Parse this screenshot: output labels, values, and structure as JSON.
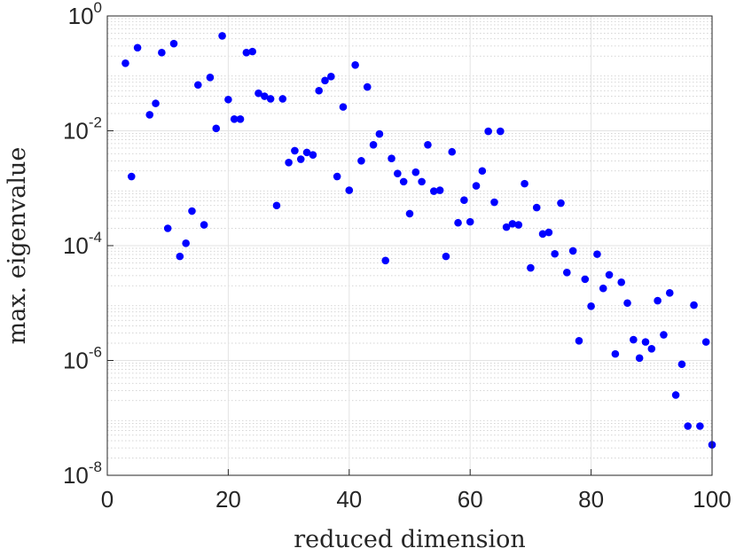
{
  "chart_data": {
    "type": "scatter",
    "xlabel": "reduced dimension",
    "ylabel": "max. eigenvalue",
    "xlim": [
      0,
      100
    ],
    "ylim": [
      1e-08,
      1
    ],
    "yscale": "log",
    "grid": true,
    "x_ticks": [
      {
        "value": 0,
        "label": "0"
      },
      {
        "value": 20,
        "label": "20"
      },
      {
        "value": 40,
        "label": "40"
      },
      {
        "value": 60,
        "label": "60"
      },
      {
        "value": 80,
        "label": "80"
      },
      {
        "value": 100,
        "label": "100"
      }
    ],
    "y_ticks": [
      {
        "value": 1,
        "base": "10",
        "exp": "0"
      },
      {
        "value": 0.01,
        "base": "10",
        "exp": "-2"
      },
      {
        "value": 0.0001,
        "base": "10",
        "exp": "-4"
      },
      {
        "value": 1e-06,
        "base": "10",
        "exp": "-6"
      },
      {
        "value": 1e-08,
        "base": "10",
        "exp": "-8"
      }
    ],
    "marker_color": "#0000ff",
    "series": [
      {
        "x": [
          3,
          4,
          5,
          7,
          8,
          9,
          10,
          11,
          12,
          13,
          14,
          15,
          16,
          17,
          18,
          19,
          20,
          21,
          22,
          23,
          24,
          25,
          26,
          27,
          28,
          29,
          30,
          31,
          32,
          33,
          34,
          35,
          36,
          37,
          38,
          39,
          40,
          41,
          42,
          43,
          44,
          45,
          46,
          47,
          48,
          49,
          50,
          51,
          52,
          53,
          54,
          55,
          56,
          57,
          58,
          59,
          60,
          61,
          62,
          63,
          64,
          65,
          66,
          67,
          68,
          69,
          70,
          71,
          72,
          73,
          74,
          75,
          76,
          77,
          78,
          79,
          80,
          81,
          82,
          83,
          84,
          85,
          86,
          87,
          88,
          89,
          90,
          91,
          92,
          93,
          94,
          95,
          96,
          97,
          98,
          99,
          100
        ],
        "y": [
          0.15,
          0.0016,
          0.28,
          0.019,
          0.03,
          0.23,
          0.0002,
          0.33,
          6.5e-05,
          0.00011,
          0.0004,
          0.063,
          0.00023,
          0.085,
          0.011,
          0.45,
          0.035,
          0.016,
          0.016,
          0.23,
          0.24,
          0.045,
          0.04,
          0.036,
          0.0005,
          0.036,
          0.0028,
          0.0045,
          0.0032,
          0.0042,
          0.0038,
          0.05,
          0.075,
          0.088,
          0.0016,
          0.026,
          0.00092,
          0.14,
          0.003,
          0.058,
          0.0057,
          0.0088,
          5.5e-05,
          0.0033,
          0.0018,
          0.0013,
          0.00036,
          0.0019,
          0.0013,
          0.0057,
          0.00089,
          0.00092,
          6.5e-05,
          0.0043,
          0.00025,
          0.00062,
          0.00026,
          0.0011,
          0.002,
          0.0098,
          0.00057,
          0.0098,
          0.00021,
          0.00024,
          0.00023,
          0.0012,
          4.1e-05,
          0.00046,
          0.00016,
          0.00017,
          7.2e-05,
          0.00055,
          3.4e-05,
          8.1e-05,
          2.2e-06,
          2.6e-05,
          8.8e-06,
          7.1e-05,
          1.8e-05,
          3.1e-05,
          1.3e-06,
          2.3e-05,
          1e-05,
          2.3e-06,
          1.1e-06,
          2.1e-06,
          1.6e-06,
          1.1e-05,
          2.8e-06,
          1.5e-05,
          2.5e-07,
          8.6e-07,
          7.2e-08,
          9.2e-06,
          7.2e-08,
          2.1e-06,
          3.4e-08
        ]
      }
    ]
  }
}
